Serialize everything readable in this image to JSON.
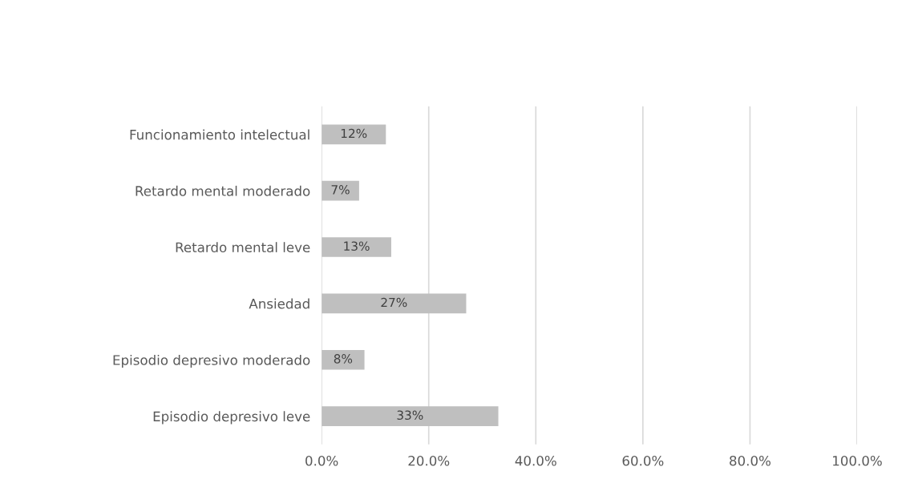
{
  "chart_data": {
    "type": "bar",
    "orientation": "horizontal",
    "categories": [
      "Funcionamiento intelectual",
      "Retardo mental moderado",
      "Retardo mental leve",
      "Ansiedad",
      "Episodio depresivo moderado",
      "Episodio depresivo leve"
    ],
    "values": [
      12,
      7,
      13,
      27,
      8,
      33
    ],
    "value_labels": [
      "12%",
      "7%",
      "13%",
      "27%",
      "8%",
      "33%"
    ],
    "color": "#bfbfbf",
    "xlim": [
      0,
      100
    ],
    "xticks": [
      {
        "value": 0,
        "label": "0.0%"
      },
      {
        "value": 20,
        "label": "20.0%"
      },
      {
        "value": 40,
        "label": "40.0%"
      },
      {
        "value": 60,
        "label": "60.0%"
      },
      {
        "value": 80,
        "label": "80.0%"
      },
      {
        "value": 100,
        "label": "100.0%"
      }
    ],
    "grid": "x",
    "legend": false
  }
}
